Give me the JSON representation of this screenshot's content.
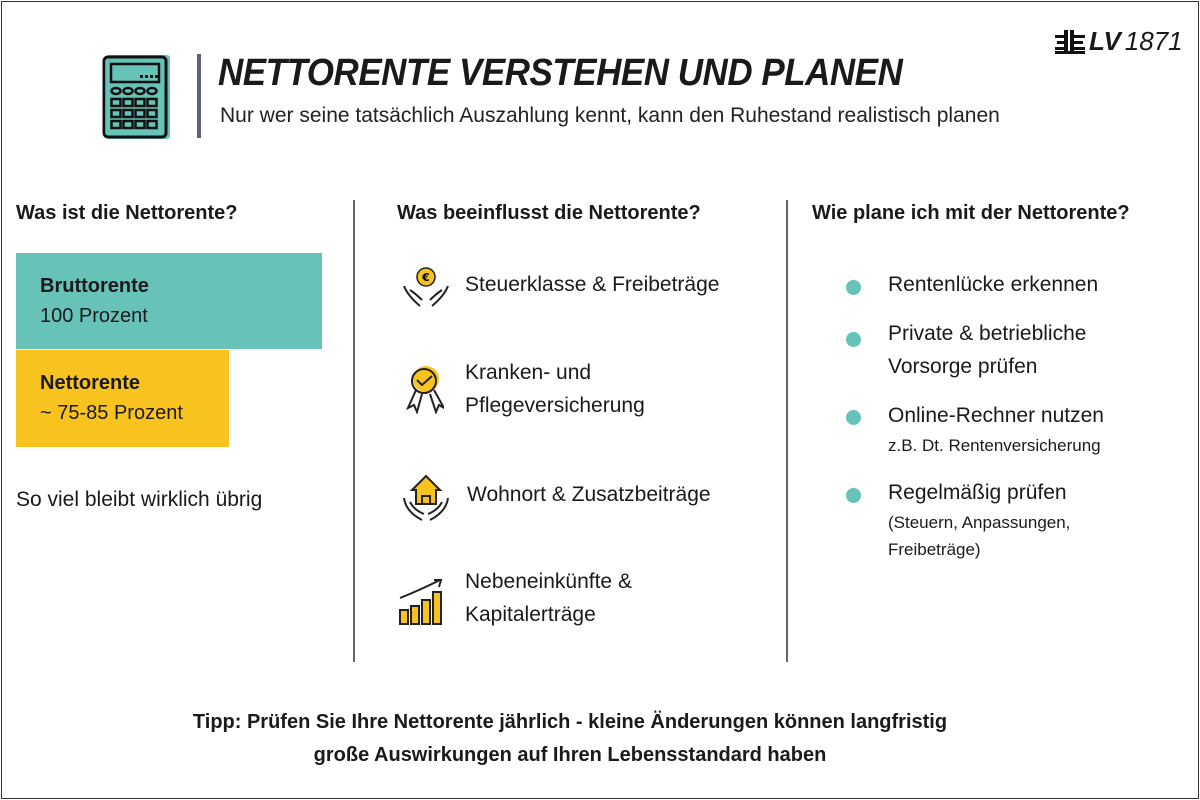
{
  "header": {
    "title": "NETTORENTE VERSTEHEN UND PLANEN",
    "subtitle": "Nur wer seine tatsächlich Auszahlung kennt, kann den Ruhestand realistisch planen",
    "logo_text": "LV 1871",
    "logo_bold": "LV",
    "logo_num": "1871"
  },
  "colors": {
    "teal": "#67c2b8",
    "yellow": "#f9c31f"
  },
  "col1": {
    "heading": "Was ist die Nettorente?",
    "brutto_label": "Bruttorente",
    "brutto_value": "100 Prozent",
    "netto_label": "Nettorente",
    "netto_value": "~ 75-85 Prozent",
    "note": "So viel bleibt wirklich übrig"
  },
  "col2": {
    "heading": "Was beeinflusst die Nettorente?",
    "items": [
      {
        "icon": "hands-euro-icon",
        "line1": "Steuerklasse & Freibeträge"
      },
      {
        "icon": "award-check-icon",
        "line1": "Kranken- und",
        "line2": "Pflegeversicherung"
      },
      {
        "icon": "hands-house-icon",
        "line1": "Wohnort & Zusatzbeiträge"
      },
      {
        "icon": "growth-chart-icon",
        "line1": "Nebeneinkünfte &",
        "line2": "Kapitalerträge"
      }
    ]
  },
  "col3": {
    "heading": "Wie plane ich mit der Nettorente?",
    "items": [
      {
        "line1": "Rentenlücke erkennen"
      },
      {
        "line1": "Private & betriebliche",
        "line2": "Vorsorge prüfen"
      },
      {
        "line1": "Online-Rechner nutzen",
        "sub": "z.B. Dt. Rentenversicherung"
      },
      {
        "line1": "Regelmäßig prüfen",
        "sub1": "(Steuern, Anpassungen,",
        "sub2": "Freibeträge)"
      }
    ]
  },
  "footer": {
    "line1": "Tipp: Prüfen Sie Ihre Nettorente jährlich - kleine Änderungen können langfristig",
    "line2": "große Auswirkungen auf Ihren Lebensstandard haben"
  }
}
